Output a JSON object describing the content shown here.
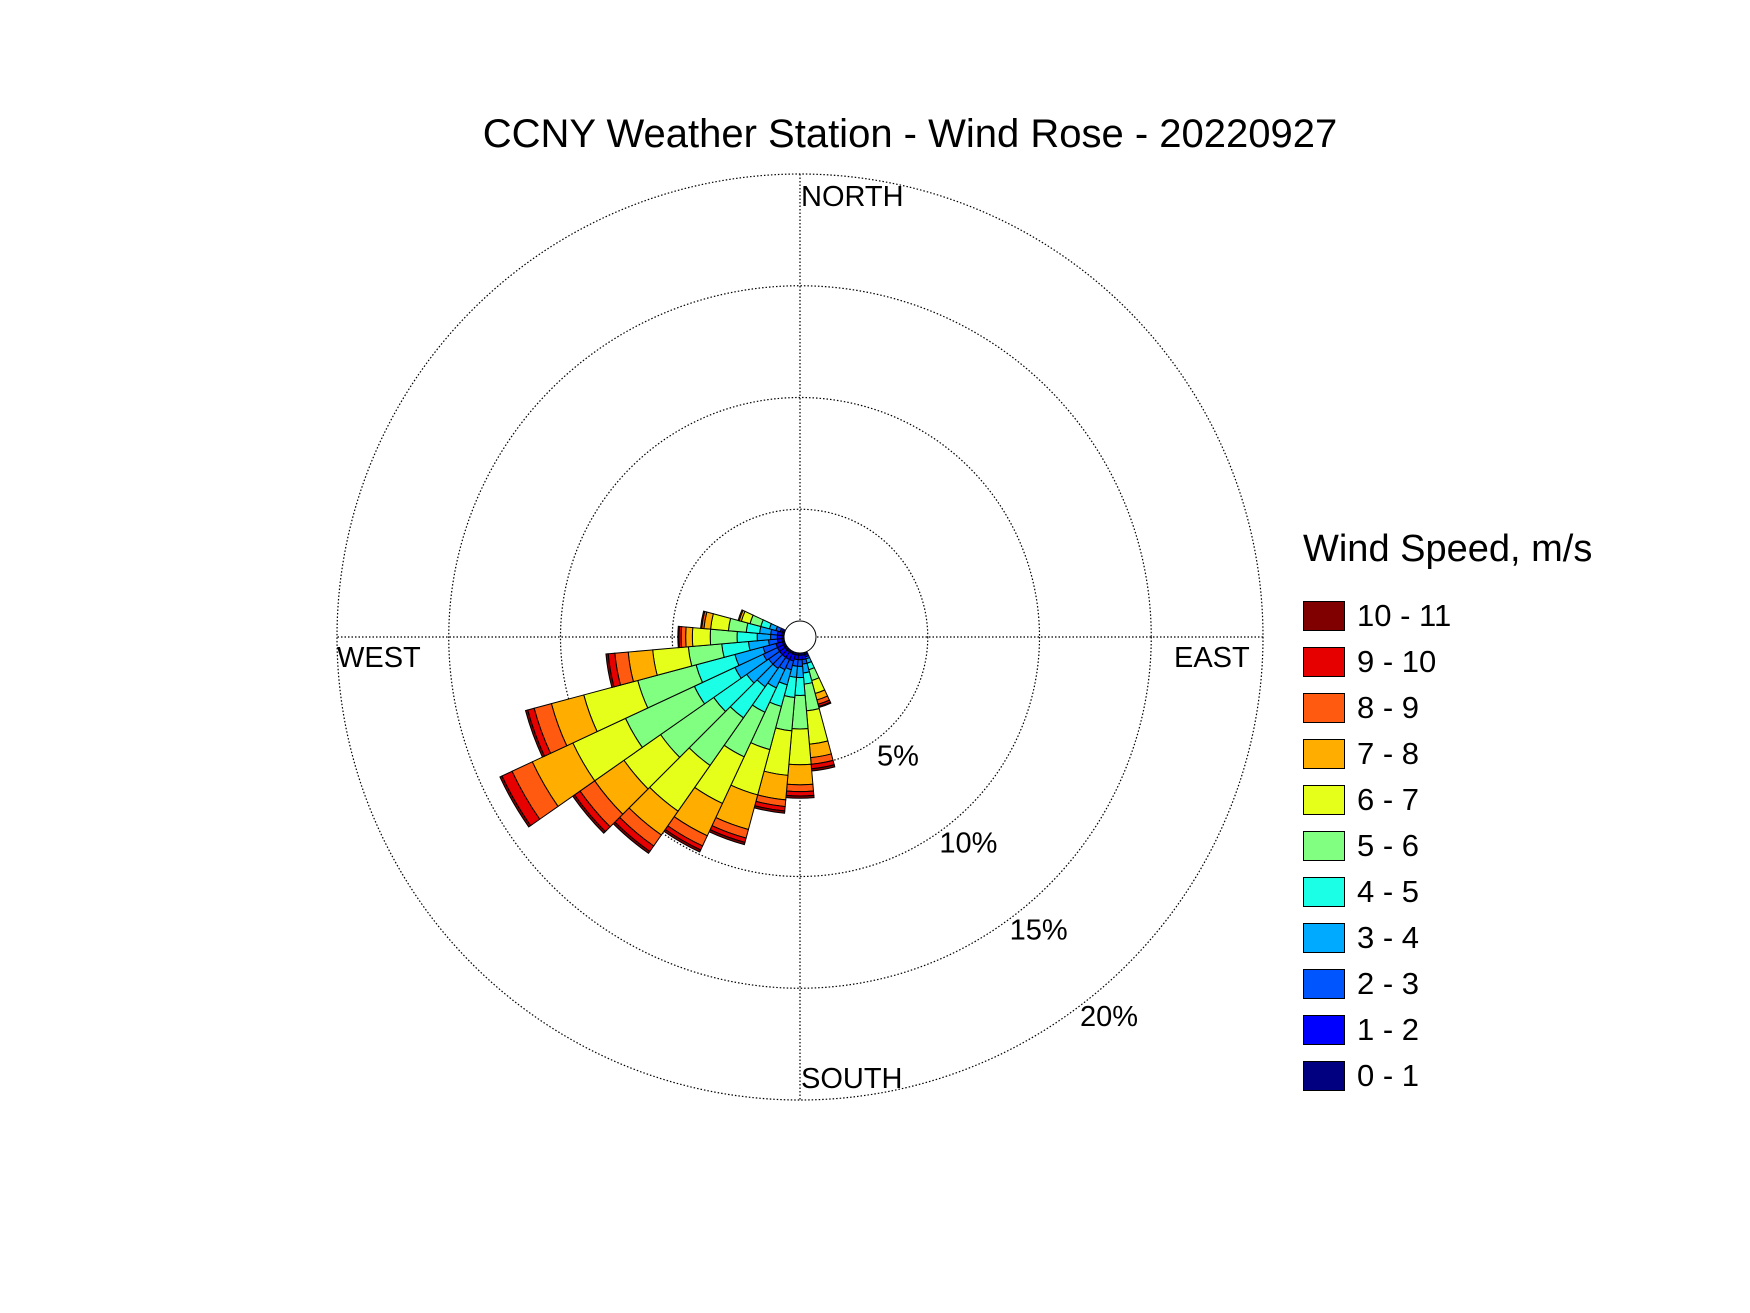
{
  "chart_data": {
    "type": "polar-bar",
    "title": "CCNY Weather Station - Wind Rose - 20220927",
    "direction_labels": {
      "north": "NORTH",
      "south": "SOUTH",
      "east": "EAST",
      "west": "WEST"
    },
    "radial_ticks": [
      5,
      10,
      15,
      20
    ],
    "radial_tick_labels": [
      "5%",
      "10%",
      "15%",
      "20%"
    ],
    "radial_max": 20,
    "grid": true,
    "legend": {
      "title": "Wind Speed, m/s",
      "placement": "right",
      "bins": [
        {
          "label": "10 - 11",
          "color": "#800000"
        },
        {
          "label": "9 - 10",
          "color": "#e60000"
        },
        {
          "label": "8 - 9",
          "color": "#ff5a10"
        },
        {
          "label": "7 - 8",
          "color": "#ffae00"
        },
        {
          "label": "6 - 7",
          "color": "#e6ff1a"
        },
        {
          "label": "5 - 6",
          "color": "#80ff80"
        },
        {
          "label": "4 - 5",
          "color": "#1affe6"
        },
        {
          "label": "3 - 4",
          "color": "#00aaff"
        },
        {
          "label": "2 - 3",
          "color": "#0055ff"
        },
        {
          "label": "1 - 2",
          "color": "#0000ff"
        },
        {
          "label": "0 - 1",
          "color": "#000080"
        }
      ]
    },
    "series_order": [
      "0 - 1",
      "1 - 2",
      "2 - 3",
      "3 - 4",
      "4 - 5",
      "5 - 6",
      "6 - 7",
      "7 - 8",
      "8 - 9",
      "9 - 10",
      "10 - 11"
    ],
    "sector_width_deg": 10,
    "sectors": [
      {
        "direction_deg": 160,
        "values": [
          0.1,
          0.1,
          0.1,
          0.2,
          0.3,
          0.5,
          0.6,
          0.3,
          0.2,
          0.1,
          0.05
        ]
      },
      {
        "direction_deg": 170,
        "values": [
          0.1,
          0.2,
          0.2,
          0.4,
          0.5,
          1.2,
          1.5,
          0.6,
          0.3,
          0.2,
          0.1
        ]
      },
      {
        "direction_deg": 180,
        "values": [
          0.1,
          0.2,
          0.3,
          0.5,
          0.8,
          1.5,
          1.6,
          0.9,
          0.3,
          0.2,
          0.1
        ]
      },
      {
        "direction_deg": 190,
        "values": [
          0.1,
          0.2,
          0.3,
          0.5,
          0.9,
          1.5,
          2.0,
          1.1,
          0.3,
          0.2,
          0.1
        ]
      },
      {
        "direction_deg": 200,
        "values": [
          0.1,
          0.3,
          0.4,
          0.7,
          1.0,
          2.0,
          2.1,
          1.6,
          0.4,
          0.2,
          0.1
        ]
      },
      {
        "direction_deg": 210,
        "values": [
          0.1,
          0.3,
          0.5,
          0.9,
          1.2,
          2.2,
          2.3,
          1.6,
          0.5,
          0.2,
          0.1
        ]
      },
      {
        "direction_deg": 220,
        "values": [
          0.1,
          0.3,
          0.6,
          1.0,
          1.7,
          2.6,
          2.5,
          1.3,
          0.6,
          0.3,
          0.1
        ]
      },
      {
        "direction_deg": 230,
        "values": [
          0.1,
          0.3,
          0.6,
          1.2,
          1.8,
          2.9,
          2.0,
          1.6,
          0.8,
          0.3,
          0.1
        ]
      },
      {
        "direction_deg": 240,
        "values": [
          0.1,
          0.3,
          0.7,
          1.4,
          2.0,
          3.4,
          2.6,
          2.0,
          1.0,
          0.5,
          0.1
        ]
      },
      {
        "direction_deg": 250,
        "values": [
          0.1,
          0.3,
          0.6,
          1.3,
          1.8,
          2.7,
          2.5,
          1.5,
          0.8,
          0.3,
          0.1
        ]
      },
      {
        "direction_deg": 260,
        "values": [
          0.1,
          0.2,
          0.4,
          0.9,
          1.2,
          1.5,
          1.6,
          1.1,
          0.6,
          0.3,
          0.1
        ]
      },
      {
        "direction_deg": 270,
        "values": [
          0.1,
          0.2,
          0.3,
          0.6,
          0.9,
          1.2,
          0.8,
          0.3,
          0.2,
          0.1,
          0.05
        ]
      },
      {
        "direction_deg": 280,
        "values": [
          0.1,
          0.2,
          0.3,
          0.5,
          0.6,
          0.8,
          0.8,
          0.3,
          0.1,
          0.05,
          0.0
        ]
      },
      {
        "direction_deg": 290,
        "values": [
          0.1,
          0.1,
          0.2,
          0.3,
          0.4,
          0.5,
          0.4,
          0.1,
          0.05,
          0.0,
          0.0
        ]
      }
    ]
  }
}
